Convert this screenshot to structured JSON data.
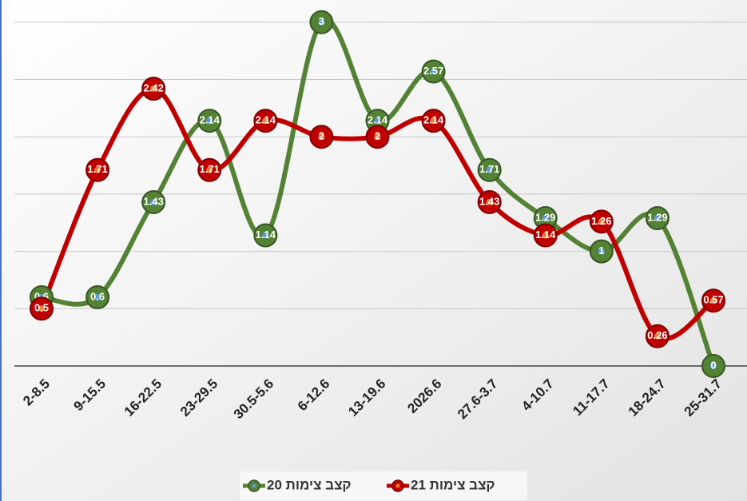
{
  "chart_data": {
    "type": "line",
    "categories": [
      "2-8.5",
      "9-15.5",
      "16-22.5",
      "23-29.5",
      "30.5-5.6",
      "6-12.6",
      "13-19.6",
      "2026.6",
      "27.6-3.7",
      "4-10.7",
      "11-17.7",
      "18-24.7",
      "25-31.7"
    ],
    "series": [
      {
        "name": "קצב צימות 20",
        "color": "#548235",
        "values": [
          0.6,
          0.6,
          1.43,
          2.14,
          1.14,
          3,
          2.14,
          2.57,
          1.71,
          1.29,
          1,
          1.29,
          0
        ]
      },
      {
        "name": "קצב צימות 21",
        "color": "#c00000",
        "values": [
          0.5,
          1.71,
          2.42,
          1.71,
          2.14,
          2,
          2,
          2.14,
          1.43,
          1.14,
          1.26,
          0.26,
          0.57
        ]
      }
    ],
    "ylim": [
      0,
      3.2
    ],
    "yticks": [
      0,
      0.5,
      1,
      1.5,
      2,
      2.5,
      3
    ],
    "grid": true,
    "smooth": true,
    "legend": "bottom"
  }
}
